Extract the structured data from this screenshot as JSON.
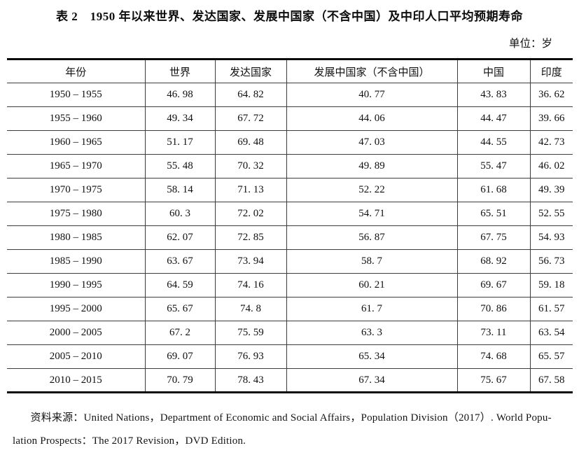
{
  "title": "表 2　1950 年以来世界、发达国家、发展中国家（不含中国）及中印人口平均预期寿命",
  "unit_label": "单位：岁",
  "table": {
    "headers": [
      "年份",
      "世界",
      "发达国家",
      "发展中国家（不含中国）",
      "中国",
      "印度"
    ],
    "rows": [
      [
        "1950 – 1955",
        "46. 98",
        "64. 82",
        "40. 77",
        "43. 83",
        "36. 62"
      ],
      [
        "1955 – 1960",
        "49. 34",
        "67. 72",
        "44. 06",
        "44. 47",
        "39. 66"
      ],
      [
        "1960 – 1965",
        "51. 17",
        "69. 48",
        "47. 03",
        "44. 55",
        "42. 73"
      ],
      [
        "1965 – 1970",
        "55. 48",
        "70. 32",
        "49. 89",
        "55. 47",
        "46. 02"
      ],
      [
        "1970 – 1975",
        "58. 14",
        "71. 13",
        "52. 22",
        "61. 68",
        "49. 39"
      ],
      [
        "1975 – 1980",
        "60. 3",
        "72. 02",
        "54. 71",
        "65. 51",
        "52. 55"
      ],
      [
        "1980 – 1985",
        "62. 07",
        "72. 85",
        "56. 87",
        "67. 75",
        "54. 93"
      ],
      [
        "1985 – 1990",
        "63. 67",
        "73. 94",
        "58. 7",
        "68. 92",
        "56. 73"
      ],
      [
        "1990 – 1995",
        "64. 59",
        "74. 16",
        "60. 21",
        "69. 67",
        "59. 18"
      ],
      [
        "1995 – 2000",
        "65. 67",
        "74. 8",
        "61. 7",
        "70. 86",
        "61. 57"
      ],
      [
        "2000 – 2005",
        "67. 2",
        "75. 59",
        "63. 3",
        "73. 11",
        "63. 54"
      ],
      [
        "2005 – 2010",
        "69. 07",
        "76. 93",
        "65. 34",
        "74. 68",
        "65. 57"
      ],
      [
        "2010 – 2015",
        "70. 79",
        "78. 43",
        "67. 34",
        "75. 67",
        "67. 58"
      ]
    ]
  },
  "source": {
    "line1": "资料来源：United Nations，Department of Economic and Social Affairs，Population Division（2017）. World Popu-",
    "line2": "lation Prospects：The 2017 Revision，DVD Edition."
  }
}
